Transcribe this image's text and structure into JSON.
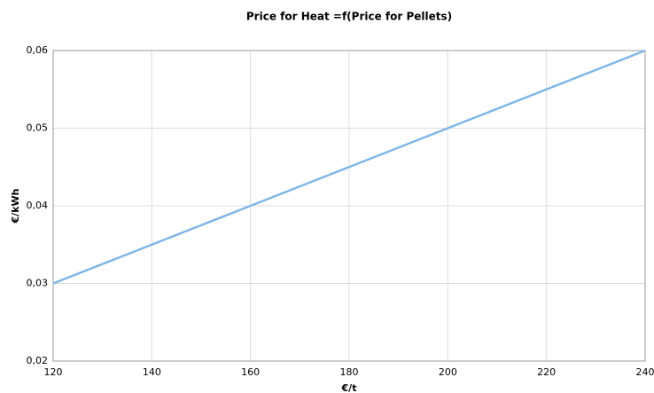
{
  "chart_data": {
    "type": "line",
    "title": "Price for Heat =f(Price for Pellets)",
    "x_label": "€/t",
    "y_label": "€/kWh",
    "x": [
      120,
      140,
      160,
      180,
      200,
      220,
      240
    ],
    "series": [
      {
        "name": "Price for Heat",
        "color": "#7fb6e8",
        "values": [
          0.03,
          0.035,
          0.04,
          0.045,
          0.05,
          0.055,
          0.06
        ]
      }
    ],
    "xlim": [
      120,
      240
    ],
    "xticks": [
      120,
      140,
      160,
      180,
      200,
      220,
      240
    ],
    "ylim": [
      0.02,
      0.06
    ],
    "yticks": [
      {
        "value": 0.02,
        "label": "0,02"
      },
      {
        "value": 0.03,
        "label": "0,03"
      },
      {
        "value": 0.04,
        "label": "0,04"
      },
      {
        "value": 0.05,
        "label": "0,05"
      },
      {
        "value": 0.06,
        "label": "0,06"
      }
    ],
    "grid": true
  }
}
